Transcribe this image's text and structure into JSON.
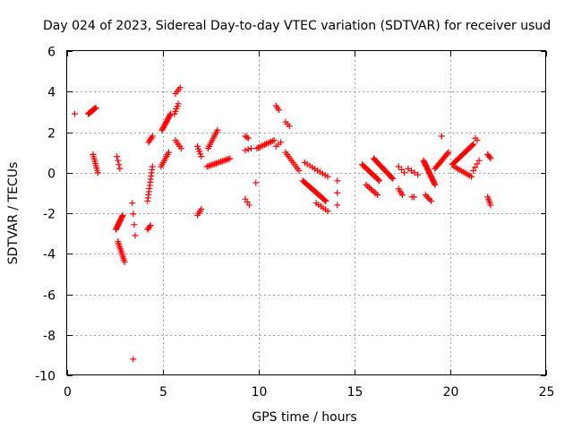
{
  "chart_data": {
    "type": "scatter",
    "title": "Day 024 of 2023, Sidereal Day-to-day VTEC variation (SDTVAR) for receiver usud",
    "xlabel": "GPS time / hours",
    "ylabel": "SDTVAR / TECUs",
    "xlim": [
      0,
      25
    ],
    "ylim": [
      -10,
      6
    ],
    "xticks": [
      "0",
      "5",
      "10",
      "15",
      "20",
      "25"
    ],
    "yticks": [
      "-10",
      "-8",
      "-6",
      "-4",
      "-2",
      "0",
      "2",
      "4",
      "6"
    ],
    "grid": true,
    "marker": "+",
    "color": "#ff0000",
    "segments": [
      {
        "x": [
          0.4,
          0.4
        ],
        "y": [
          2.9,
          2.9
        ],
        "n": 1
      },
      {
        "x": [
          1.1,
          1.5
        ],
        "y": [
          2.9,
          3.2
        ],
        "n": 18
      },
      {
        "x": [
          1.35,
          1.6
        ],
        "y": [
          0.9,
          0.0
        ],
        "n": 9
      },
      {
        "x": [
          2.55,
          2.9
        ],
        "y": [
          -2.8,
          -2.1
        ],
        "n": 14
      },
      {
        "x": [
          2.6,
          2.75
        ],
        "y": [
          0.8,
          0.2
        ],
        "n": 4
      },
      {
        "x": [
          2.65,
          3.0
        ],
        "y": [
          -3.4,
          -4.4
        ],
        "n": 12
      },
      {
        "x": [
          3.4,
          3.55
        ],
        "y": [
          -1.5,
          -3.1
        ],
        "n": 4
      },
      {
        "x": [
          3.45,
          3.45
        ],
        "y": [
          -9.2,
          -9.2
        ],
        "n": 1
      },
      {
        "x": [
          4.2,
          4.35
        ],
        "y": [
          -2.8,
          -2.6
        ],
        "n": 4
      },
      {
        "x": [
          4.2,
          4.45
        ],
        "y": [
          -1.4,
          0.3
        ],
        "n": 12
      },
      {
        "x": [
          4.25,
          4.45
        ],
        "y": [
          1.5,
          1.8
        ],
        "n": 5
      },
      {
        "x": [
          4.95,
          5.4
        ],
        "y": [
          2.1,
          2.9
        ],
        "n": 14
      },
      {
        "x": [
          4.9,
          5.3
        ],
        "y": [
          0.3,
          1.0
        ],
        "n": 8
      },
      {
        "x": [
          5.6,
          5.8
        ],
        "y": [
          2.9,
          3.4
        ],
        "n": 5
      },
      {
        "x": [
          5.65,
          5.9
        ],
        "y": [
          3.9,
          4.2
        ],
        "n": 4
      },
      {
        "x": [
          5.65,
          5.95
        ],
        "y": [
          1.6,
          1.2
        ],
        "n": 5
      },
      {
        "x": [
          6.8,
          7.0
        ],
        "y": [
          -2.1,
          -1.8
        ],
        "n": 4
      },
      {
        "x": [
          6.8,
          7.0
        ],
        "y": [
          1.3,
          0.8
        ],
        "n": 5
      },
      {
        "x": [
          7.35,
          7.85
        ],
        "y": [
          1.2,
          2.1
        ],
        "n": 10
      },
      {
        "x": [
          7.3,
          8.5
        ],
        "y": [
          0.3,
          0.7
        ],
        "n": 16
      },
      {
        "x": [
          9.3,
          9.45
        ],
        "y": [
          1.8,
          1.7
        ],
        "n": 3
      },
      {
        "x": [
          9.3,
          9.5
        ],
        "y": [
          -1.3,
          -1.6
        ],
        "n": 3
      },
      {
        "x": [
          9.3,
          9.6
        ],
        "y": [
          1.1,
          1.2
        ],
        "n": 3
      },
      {
        "x": [
          9.85,
          9.85
        ],
        "y": [
          -0.5,
          -0.5
        ],
        "n": 1
      },
      {
        "x": [
          9.9,
          10.8
        ],
        "y": [
          1.2,
          1.6
        ],
        "n": 12
      },
      {
        "x": [
          10.9,
          11.05
        ],
        "y": [
          3.3,
          3.1
        ],
        "n": 3
      },
      {
        "x": [
          10.9,
          11.15
        ],
        "y": [
          1.3,
          1.5
        ],
        "n": 3
      },
      {
        "x": [
          11.4,
          11.6
        ],
        "y": [
          2.5,
          2.3
        ],
        "n": 3
      },
      {
        "x": [
          11.4,
          12.1
        ],
        "y": [
          1.0,
          0.1
        ],
        "n": 10
      },
      {
        "x": [
          12.3,
          13.5
        ],
        "y": [
          -0.4,
          -1.4
        ],
        "n": 28
      },
      {
        "x": [
          12.4,
          13.6
        ],
        "y": [
          0.5,
          -0.2
        ],
        "n": 10
      },
      {
        "x": [
          13.0,
          13.6
        ],
        "y": [
          -1.5,
          -1.9
        ],
        "n": 6
      },
      {
        "x": [
          14.1,
          14.1
        ],
        "y": [
          -0.4,
          -1.6
        ],
        "n": 3
      },
      {
        "x": [
          15.4,
          16.3
        ],
        "y": [
          0.4,
          -0.4
        ],
        "n": 18
      },
      {
        "x": [
          15.6,
          16.2
        ],
        "y": [
          -0.6,
          -1.1
        ],
        "n": 8
      },
      {
        "x": [
          16.0,
          17.0
        ],
        "y": [
          0.7,
          -0.3
        ],
        "n": 20
      },
      {
        "x": [
          17.3,
          17.5
        ],
        "y": [
          -0.8,
          -1.1
        ],
        "n": 4
      },
      {
        "x": [
          17.3,
          17.6
        ],
        "y": [
          0.3,
          0.0
        ],
        "n": 3
      },
      {
        "x": [
          17.8,
          18.3
        ],
        "y": [
          0.2,
          -0.1
        ],
        "n": 4
      },
      {
        "x": [
          18.0,
          18.1
        ],
        "y": [
          -1.2,
          -1.2
        ],
        "n": 2
      },
      {
        "x": [
          18.6,
          19.2
        ],
        "y": [
          0.6,
          -0.6
        ],
        "n": 22
      },
      {
        "x": [
          18.7,
          19.0
        ],
        "y": [
          -1.1,
          -1.4
        ],
        "n": 5
      },
      {
        "x": [
          19.2,
          19.9
        ],
        "y": [
          0.2,
          1.0
        ],
        "n": 14
      },
      {
        "x": [
          19.55,
          19.55
        ],
        "y": [
          1.8,
          1.8
        ],
        "n": 1
      },
      {
        "x": [
          20.1,
          21.2
        ],
        "y": [
          0.4,
          1.4
        ],
        "n": 26
      },
      {
        "x": [
          20.2,
          21.1
        ],
        "y": [
          0.3,
          -0.2
        ],
        "n": 10
      },
      {
        "x": [
          21.3,
          21.4
        ],
        "y": [
          1.7,
          1.6
        ],
        "n": 2
      },
      {
        "x": [
          21.2,
          21.5
        ],
        "y": [
          0.1,
          0.6
        ],
        "n": 4
      },
      {
        "x": [
          21.95,
          22.1
        ],
        "y": [
          0.9,
          0.7
        ],
        "n": 4
      },
      {
        "x": [
          21.95,
          22.1
        ],
        "y": [
          -1.2,
          -1.6
        ],
        "n": 5
      }
    ]
  }
}
